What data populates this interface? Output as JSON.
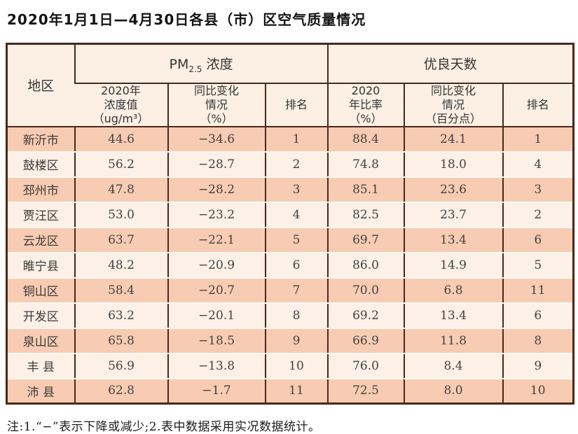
{
  "title": "2020年1月1日—4月30日各县（市）区空气质量情况",
  "note": "注:1.“−”表示下降或减少;2.表中数据采用实况数据统计。",
  "colors": {
    "row_odd": "#f8ccb2",
    "row_even": "#fcf0e7",
    "header_bg": "#fcf0e4",
    "border": "#4a281a"
  },
  "table": {
    "header": {
      "region": "地区",
      "pm25": {
        "base": "PM",
        "sub": "2.5",
        "rest": " 浓度"
      },
      "good_days": "优良天数",
      "sub_headers": [
        "2020年\n浓度值\n（ug/m³）",
        "同比变化\n情况\n（%）",
        "排名",
        "2020\n年比率\n（%）",
        "同比变化\n情况\n（百分点）",
        "排名"
      ]
    },
    "rows": [
      {
        "region": "新沂市",
        "values": [
          "44.6",
          "−34.6",
          "1",
          "88.4",
          "24.1",
          "1"
        ]
      },
      {
        "region": "鼓楼区",
        "values": [
          "56.2",
          "−28.7",
          "2",
          "74.8",
          "18.0",
          "4"
        ]
      },
      {
        "region": "邳州市",
        "values": [
          "47.8",
          "−28.2",
          "3",
          "85.1",
          "23.6",
          "3"
        ]
      },
      {
        "region": "贾汪区",
        "values": [
          "53.0",
          "−23.2",
          "4",
          "82.5",
          "23.7",
          "2"
        ]
      },
      {
        "region": "云龙区",
        "values": [
          "63.7",
          "−22.1",
          "5",
          "69.7",
          "13.4",
          "6"
        ]
      },
      {
        "region": "睢宁县",
        "values": [
          "48.2",
          "−20.9",
          "6",
          "86.0",
          "14.9",
          "5"
        ]
      },
      {
        "region": "铜山区",
        "values": [
          "58.4",
          "−20.7",
          "7",
          "70.0",
          "6.8",
          "11"
        ]
      },
      {
        "region": "开发区",
        "values": [
          "63.2",
          "−20.1",
          "8",
          "69.2",
          "13.4",
          "6"
        ]
      },
      {
        "region": "泉山区",
        "values": [
          "65.8",
          "−18.5",
          "9",
          "66.9",
          "11.8",
          "8"
        ]
      },
      {
        "region": "丰 县",
        "values": [
          "56.9",
          "−13.8",
          "10",
          "76.0",
          "8.4",
          "9"
        ]
      },
      {
        "region": "沛 县",
        "values": [
          "62.8",
          "−1.7",
          "11",
          "72.5",
          "8.0",
          "10"
        ]
      }
    ]
  }
}
